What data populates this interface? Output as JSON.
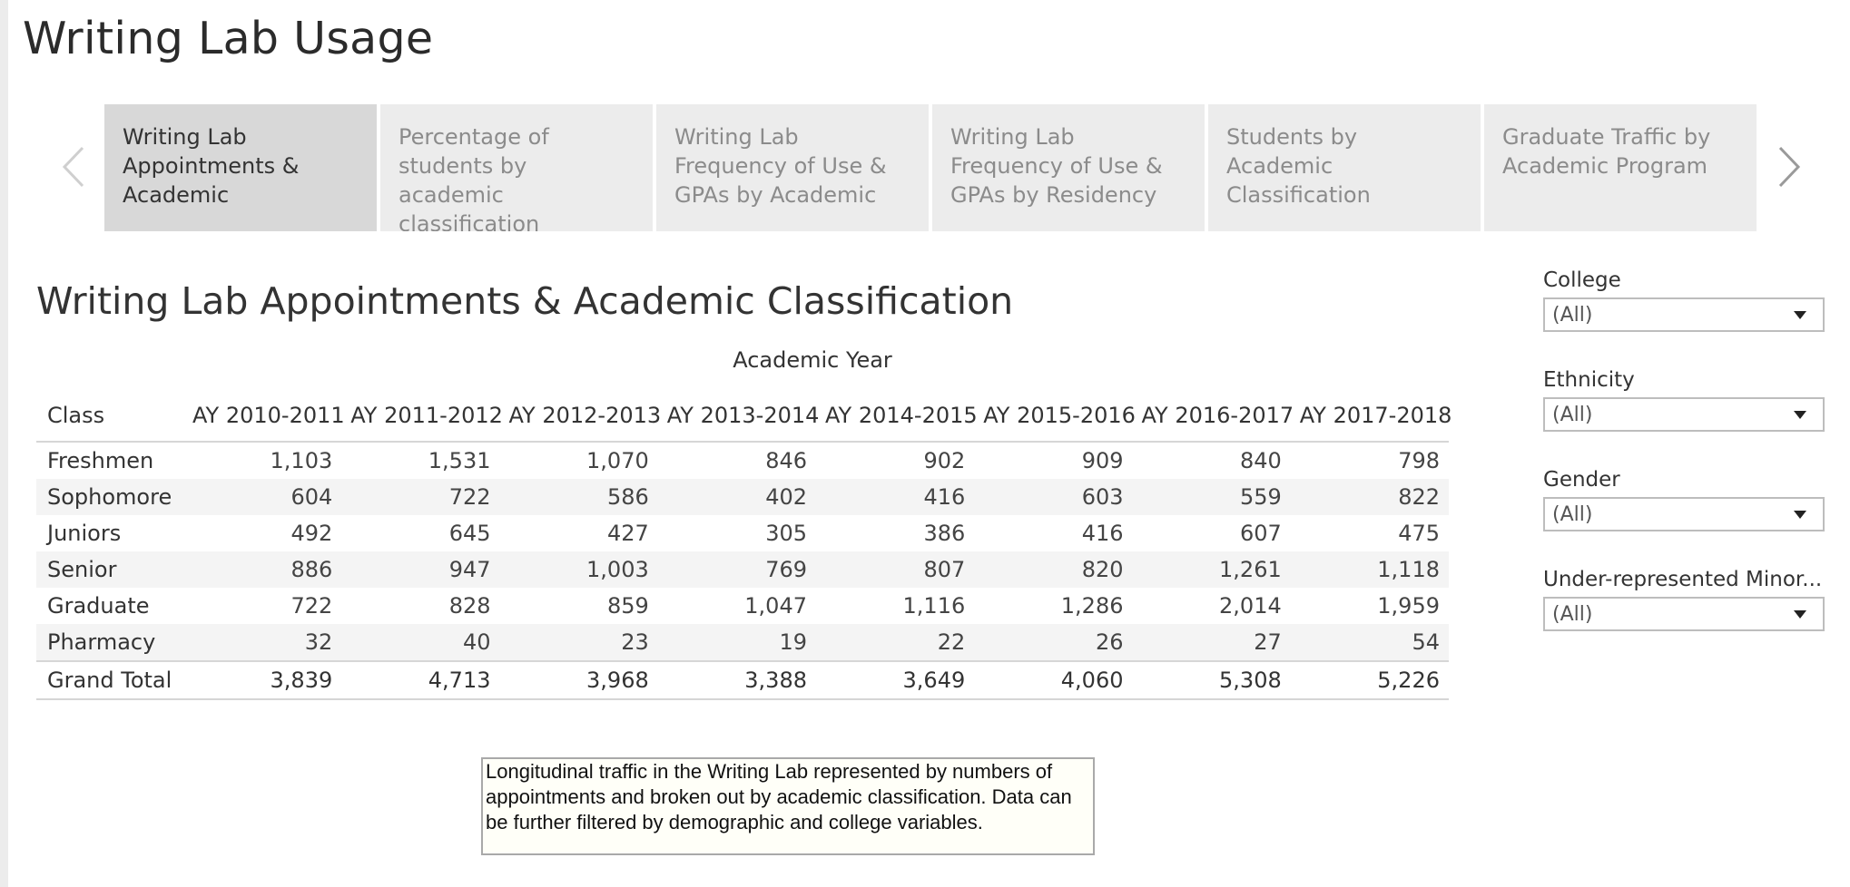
{
  "page": {
    "title": "Writing Lab Usage"
  },
  "carousel": {
    "tabs": [
      {
        "label": "Writing Lab Appointments & Academic",
        "active": true
      },
      {
        "label": "Percentage of students by academic classification",
        "active": false
      },
      {
        "label": "Writing Lab Frequency of Use & GPAs by Academic",
        "active": false
      },
      {
        "label": "Writing Lab Frequency of Use & GPAs by Residency",
        "active": false
      },
      {
        "label": "Students by Academic Classification",
        "active": false
      },
      {
        "label": "Graduate Traffic by Academic Program",
        "active": false
      }
    ]
  },
  "report": {
    "title": "Writing Lab Appointments & Academic Classification",
    "column_group": "Academic Year",
    "row_header": "Class",
    "years": [
      "AY 2010-2011",
      "AY 2011-2012",
      "AY 2012-2013",
      "AY 2013-2014",
      "AY 2014-2015",
      "AY 2015-2016",
      "AY 2016-2017",
      "AY 2017-2018"
    ],
    "rows": [
      {
        "label": "Freshmen",
        "values": [
          "1,103",
          "1,531",
          "1,070",
          "846",
          "902",
          "909",
          "840",
          "798"
        ]
      },
      {
        "label": "Sophomore",
        "values": [
          "604",
          "722",
          "586",
          "402",
          "416",
          "603",
          "559",
          "822"
        ]
      },
      {
        "label": "Juniors",
        "values": [
          "492",
          "645",
          "427",
          "305",
          "386",
          "416",
          "607",
          "475"
        ]
      },
      {
        "label": "Senior",
        "values": [
          "886",
          "947",
          "1,003",
          "769",
          "807",
          "820",
          "1,261",
          "1,118"
        ]
      },
      {
        "label": "Graduate",
        "values": [
          "722",
          "828",
          "859",
          "1,047",
          "1,116",
          "1,286",
          "2,014",
          "1,959"
        ]
      },
      {
        "label": "Pharmacy",
        "values": [
          "32",
          "40",
          "23",
          "19",
          "22",
          "26",
          "27",
          "54"
        ]
      }
    ],
    "total": {
      "label": "Grand Total",
      "values": [
        "3,839",
        "4,713",
        "3,968",
        "3,388",
        "3,649",
        "4,060",
        "5,308",
        "5,226"
      ]
    },
    "note": "Longitudinal traffic in the Writing Lab represented by numbers of appointments and broken out by academic classification. Data can be further filtered by demographic and college variables."
  },
  "filters": [
    {
      "label": "College",
      "value": "(All)"
    },
    {
      "label": "Ethnicity",
      "value": "(All)"
    },
    {
      "label": "Gender",
      "value": "(All)"
    },
    {
      "label": "Under-represented Minor...",
      "value": "(All)"
    }
  ]
}
